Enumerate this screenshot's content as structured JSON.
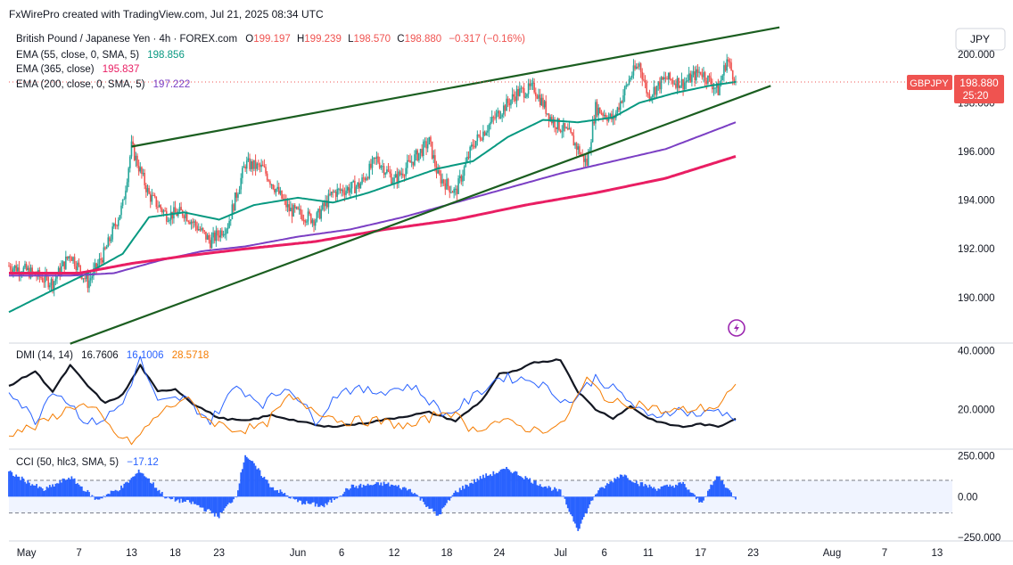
{
  "header": {
    "credit": "FxWirePro created with TradingView.com, Jul 21, 2025 08:34 UTC"
  },
  "legend": {
    "symbol": "British Pound / Japanese Yen · 4h · FOREX.com",
    "open_label": "O",
    "open": "199.197",
    "high_label": "H",
    "high": "199.239",
    "low_label": "L",
    "low": "198.570",
    "close_label": "C",
    "close": "198.880",
    "change": "−0.317 (−0.16%)",
    "ema55_label": "EMA (55, close, 0, SMA, 5)",
    "ema55_value": "198.856",
    "ema365_label": "EMA (365, close)",
    "ema365_value": "195.837",
    "ema200_label": "EMA (200, close, 0, SMA, 5)",
    "ema200_value": "197.222"
  },
  "currency_button": "JPY",
  "price_tag": {
    "symbol": "GBPJPY",
    "price": "198.880",
    "countdown": "25:20"
  },
  "dmi_legend": {
    "label": "DMI (14, 14)",
    "adx": "16.7606",
    "plus_di": "16.1006",
    "minus_di": "28.5718"
  },
  "cci_legend": {
    "label": "CCI (50, hlc3, SMA, 5)",
    "value": "−17.12"
  },
  "colors": {
    "up": "#26a69a",
    "down": "#ef5350",
    "ema55": "#089981",
    "ema365": "#e91e63",
    "ema200": "#7b3fc4",
    "trendline": "#1b5e20",
    "adx": "#131722",
    "plus_di": "#2962ff",
    "minus_di": "#f57c00",
    "cci": "#2962ff",
    "flash": "#9c27b0"
  },
  "icons": {
    "flash": "flash-icon"
  },
  "chart_data": [
    {
      "type": "candlestick",
      "title": "British Pound / Japanese Yen · 4h · FOREX.com",
      "y_ticks": [
        "190.000",
        "192.000",
        "194.000",
        "196.000",
        "198.000",
        "200.000"
      ],
      "ylim": [
        188.2,
        201.2
      ],
      "x_ticks": [
        "May",
        "7",
        "13",
        "18",
        "23",
        "Jun",
        "6",
        "12",
        "18",
        "24",
        "Jul",
        "6",
        "11",
        "17",
        "23",
        "Aug",
        "7",
        "13"
      ],
      "price_path": [
        [
          "Apr 29",
          191.3
        ],
        [
          "May 1",
          191.1
        ],
        [
          "May 4",
          190.6
        ],
        [
          "May 6",
          191.8
        ],
        [
          "May 8",
          190.6
        ],
        [
          "May 10",
          191.9
        ],
        [
          "May 12",
          193.8
        ],
        [
          "May 13",
          196.2
        ],
        [
          "May 15",
          194.2
        ],
        [
          "May 17",
          193.4
        ],
        [
          "May 19",
          193.5
        ],
        [
          "May 22",
          192.3
        ],
        [
          "May 24",
          193.0
        ],
        [
          "May 26",
          195.5
        ],
        [
          "May 28",
          195.3
        ],
        [
          "May 31",
          193.6
        ],
        [
          "Jun 3",
          193.2
        ],
        [
          "Jun 5",
          194.3
        ],
        [
          "Jun 8",
          194.6
        ],
        [
          "Jun 10",
          195.7
        ],
        [
          "Jun 12",
          194.8
        ],
        [
          "Jun 14",
          195.6
        ],
        [
          "Jun 16",
          196.4
        ],
        [
          "Jun 17",
          195.0
        ],
        [
          "Jun 19",
          194.3
        ],
        [
          "Jun 21",
          196.3
        ],
        [
          "Jun 24",
          197.6
        ],
        [
          "Jun 26",
          198.4
        ],
        [
          "Jun 28",
          198.6
        ],
        [
          "Jun 30",
          197.3
        ],
        [
          "Jul 2",
          196.7
        ],
        [
          "Jul 4",
          195.5
        ],
        [
          "Jul 5",
          197.8
        ],
        [
          "Jul 7",
          197.3
        ],
        [
          "Jul 9",
          199.1
        ],
        [
          "Jul 10",
          199.6
        ],
        [
          "Jul 11",
          198.3
        ],
        [
          "Jul 13",
          199.0
        ],
        [
          "Jul 15",
          198.8
        ],
        [
          "Jul 17",
          199.3
        ],
        [
          "Jul 19",
          198.5
        ],
        [
          "Jul 20",
          199.8
        ],
        [
          "Jul 21",
          198.88
        ]
      ],
      "series": [
        {
          "name": "EMA (55, close, 0, SMA, 5)",
          "path": [
            [
              "Apr 29",
              189.4
            ],
            [
              "May 4",
              190.3
            ],
            [
              "May 8",
              191.0
            ],
            [
              "May 12",
              191.8
            ],
            [
              "May 15",
              193.3
            ],
            [
              "May 19",
              193.5
            ],
            [
              "May 23",
              193.2
            ],
            [
              "May 27",
              193.8
            ],
            [
              "Jun 1",
              194.1
            ],
            [
              "Jun 5",
              193.9
            ],
            [
              "Jun 9",
              194.3
            ],
            [
              "Jun 13",
              194.8
            ],
            [
              "Jun 17",
              195.3
            ],
            [
              "Jun 21",
              195.6
            ],
            [
              "Jun 25",
              196.6
            ],
            [
              "Jun 29",
              197.3
            ],
            [
              "Jul 3",
              197.2
            ],
            [
              "Jul 7",
              197.4
            ],
            [
              "Jul 10",
              198.0
            ],
            [
              "Jul 14",
              198.4
            ],
            [
              "Jul 18",
              198.7
            ],
            [
              "Jul 21",
              198.86
            ]
          ]
        },
        {
          "name": "EMA (200, close, 0, SMA, 5)",
          "path": [
            [
              "Apr 29",
              190.9
            ],
            [
              "May 6",
              190.9
            ],
            [
              "May 11",
              191.0
            ],
            [
              "May 16",
              191.5
            ],
            [
              "May 21",
              191.9
            ],
            [
              "May 26",
              192.1
            ],
            [
              "Jun 1",
              192.5
            ],
            [
              "Jun 7",
              192.8
            ],
            [
              "Jun 13",
              193.3
            ],
            [
              "Jun 19",
              193.9
            ],
            [
              "Jun 25",
              194.5
            ],
            [
              "Jul 1",
              195.1
            ],
            [
              "Jul 7",
              195.6
            ],
            [
              "Jul 13",
              196.1
            ],
            [
              "Jul 21",
              197.2
            ]
          ]
        },
        {
          "name": "EMA (365, close)",
          "path": [
            [
              "Apr 29",
              191.0
            ],
            [
              "May 7",
              191.0
            ],
            [
              "May 13",
              191.4
            ],
            [
              "May 19",
              191.7
            ],
            [
              "May 26",
              192.0
            ],
            [
              "Jun 3",
              192.3
            ],
            [
              "Jun 11",
              192.8
            ],
            [
              "Jun 19",
              193.2
            ],
            [
              "Jun 27",
              193.8
            ],
            [
              "Jul 5",
              194.3
            ],
            [
              "Jul 13",
              194.9
            ],
            [
              "Jul 21",
              195.8
            ]
          ]
        },
        {
          "name": "Upper trendline",
          "path": [
            [
              "May 13",
              196.2
            ],
            [
              "Jul 26",
              201.1
            ]
          ]
        },
        {
          "name": "Lower trendline",
          "path": [
            [
              "May 6",
              188.1
            ],
            [
              "Jul 25",
              198.7
            ]
          ]
        }
      ]
    },
    {
      "type": "line",
      "title": "DMI (14, 14)",
      "y_ticks": [
        "20.0000",
        "40.0000"
      ],
      "ylim": [
        7,
        42
      ],
      "series": [
        {
          "name": "ADX",
          "path": [
            [
              "Apr 29",
              28
            ],
            [
              "May 2",
              33
            ],
            [
              "May 4",
              26
            ],
            [
              "May 6",
              35
            ],
            [
              "May 8",
              28
            ],
            [
              "May 10",
              22
            ],
            [
              "May 12",
              25
            ],
            [
              "May 14",
              35
            ],
            [
              "May 16",
              26
            ],
            [
              "May 18",
              27
            ],
            [
              "May 20",
              22
            ],
            [
              "May 23",
              17
            ],
            [
              "May 26",
              16
            ],
            [
              "May 29",
              18
            ],
            [
              "Jun 1",
              16
            ],
            [
              "Jun 4",
              14
            ],
            [
              "Jun 8",
              15
            ],
            [
              "Jun 12",
              17
            ],
            [
              "Jun 16",
              19
            ],
            [
              "Jun 19",
              16
            ],
            [
              "Jun 22",
              23
            ],
            [
              "Jun 24",
              32
            ],
            [
              "Jun 26",
              33
            ],
            [
              "Jun 28",
              36
            ],
            [
              "Jul 1",
              37
            ],
            [
              "Jul 3",
              26
            ],
            [
              "Jul 5",
              20
            ],
            [
              "Jul 7",
              17
            ],
            [
              "Jul 9",
              21
            ],
            [
              "Jul 11",
              17
            ],
            [
              "Jul 13",
              15
            ],
            [
              "Jul 15",
              14
            ],
            [
              "Jul 17",
              15
            ],
            [
              "Jul 19",
              14
            ],
            [
              "Jul 21",
              16.76
            ]
          ]
        },
        {
          "name": "+DI",
          "path": [
            [
              "Apr 29",
              27
            ],
            [
              "May 2",
              16
            ],
            [
              "May 4",
              27
            ],
            [
              "May 6",
              22
            ],
            [
              "May 8",
              15
            ],
            [
              "May 10",
              17
            ],
            [
              "May 12",
              22
            ],
            [
              "May 14",
              37
            ],
            [
              "May 16",
              22
            ],
            [
              "May 19",
              24
            ],
            [
              "May 22",
              16
            ],
            [
              "May 25",
              28
            ],
            [
              "May 28",
              22
            ],
            [
              "May 31",
              28
            ],
            [
              "Jun 3",
              16
            ],
            [
              "Jun 6",
              27
            ],
            [
              "Jun 10",
              26
            ],
            [
              "Jun 14",
              28
            ],
            [
              "Jun 18",
              18
            ],
            [
              "Jun 21",
              24
            ],
            [
              "Jun 24",
              31
            ],
            [
              "Jun 28",
              30
            ],
            [
              "Jul 2",
              22
            ],
            [
              "Jul 5",
              31
            ],
            [
              "Jul 8",
              25
            ],
            [
              "Jul 11",
              17
            ],
            [
              "Jul 14",
              20
            ],
            [
              "Jul 17",
              18
            ],
            [
              "Jul 19",
              20
            ],
            [
              "Jul 21",
              16.1
            ]
          ]
        },
        {
          "name": "−DI",
          "path": [
            [
              "Apr 29",
              12
            ],
            [
              "May 2",
              14
            ],
            [
              "May 5",
              19
            ],
            [
              "May 7",
              22
            ],
            [
              "May 9",
              19
            ],
            [
              "May 11",
              12
            ],
            [
              "May 13",
              8
            ],
            [
              "May 16",
              18
            ],
            [
              "May 19",
              24
            ],
            [
              "May 22",
              16
            ],
            [
              "May 25",
              13
            ],
            [
              "May 28",
              14
            ],
            [
              "May 31",
              24
            ],
            [
              "Jun 3",
              20
            ],
            [
              "Jun 6",
              16
            ],
            [
              "Jun 10",
              16
            ],
            [
              "Jun 14",
              14
            ],
            [
              "Jun 18",
              20
            ],
            [
              "Jun 21",
              13
            ],
            [
              "Jun 24",
              16
            ],
            [
              "Jun 28",
              13
            ],
            [
              "Jul 1",
              14
            ],
            [
              "Jul 4",
              30
            ],
            [
              "Jul 7",
              22
            ],
            [
              "Jul 10",
              22
            ],
            [
              "Jul 13",
              19
            ],
            [
              "Jul 16",
              20
            ],
            [
              "Jul 19",
              21
            ],
            [
              "Jul 21",
              28.57
            ]
          ]
        }
      ]
    },
    {
      "type": "area",
      "title": "CCI (50, hlc3, SMA, 5)",
      "y_ticks": [
        "−250.000",
        "0.00",
        "250.000"
      ],
      "ylim": [
        -260,
        280
      ],
      "bands": [
        -100,
        100
      ],
      "series": [
        {
          "name": "CCI",
          "path": [
            [
              "Apr 29",
              150
            ],
            [
              "May 3",
              40
            ],
            [
              "May 6",
              120
            ],
            [
              "May 9",
              -20
            ],
            [
              "May 12",
              60
            ],
            [
              "May 14",
              160
            ],
            [
              "May 17",
              -10
            ],
            [
              "May 20",
              -40
            ],
            [
              "May 23",
              -120
            ],
            [
              "May 25",
              10
            ],
            [
              "May 26",
              260
            ],
            [
              "May 29",
              60
            ],
            [
              "Jun 1",
              -30
            ],
            [
              "Jun 4",
              -60
            ],
            [
              "Jun 7",
              60
            ],
            [
              "Jun 11",
              80
            ],
            [
              "Jun 14",
              40
            ],
            [
              "Jun 17",
              -120
            ],
            [
              "Jun 19",
              30
            ],
            [
              "Jun 22",
              120
            ],
            [
              "Jun 25",
              170
            ],
            [
              "Jun 28",
              90
            ],
            [
              "Jul 1",
              30
            ],
            [
              "Jul 3",
              -200
            ],
            [
              "Jul 5",
              20
            ],
            [
              "Jul 8",
              140
            ],
            [
              "Jul 10",
              80
            ],
            [
              "Jul 12",
              50
            ],
            [
              "Jul 15",
              80
            ],
            [
              "Jul 17",
              -40
            ],
            [
              "Jul 19",
              130
            ],
            [
              "Jul 21",
              -17.12
            ]
          ]
        }
      ]
    }
  ]
}
